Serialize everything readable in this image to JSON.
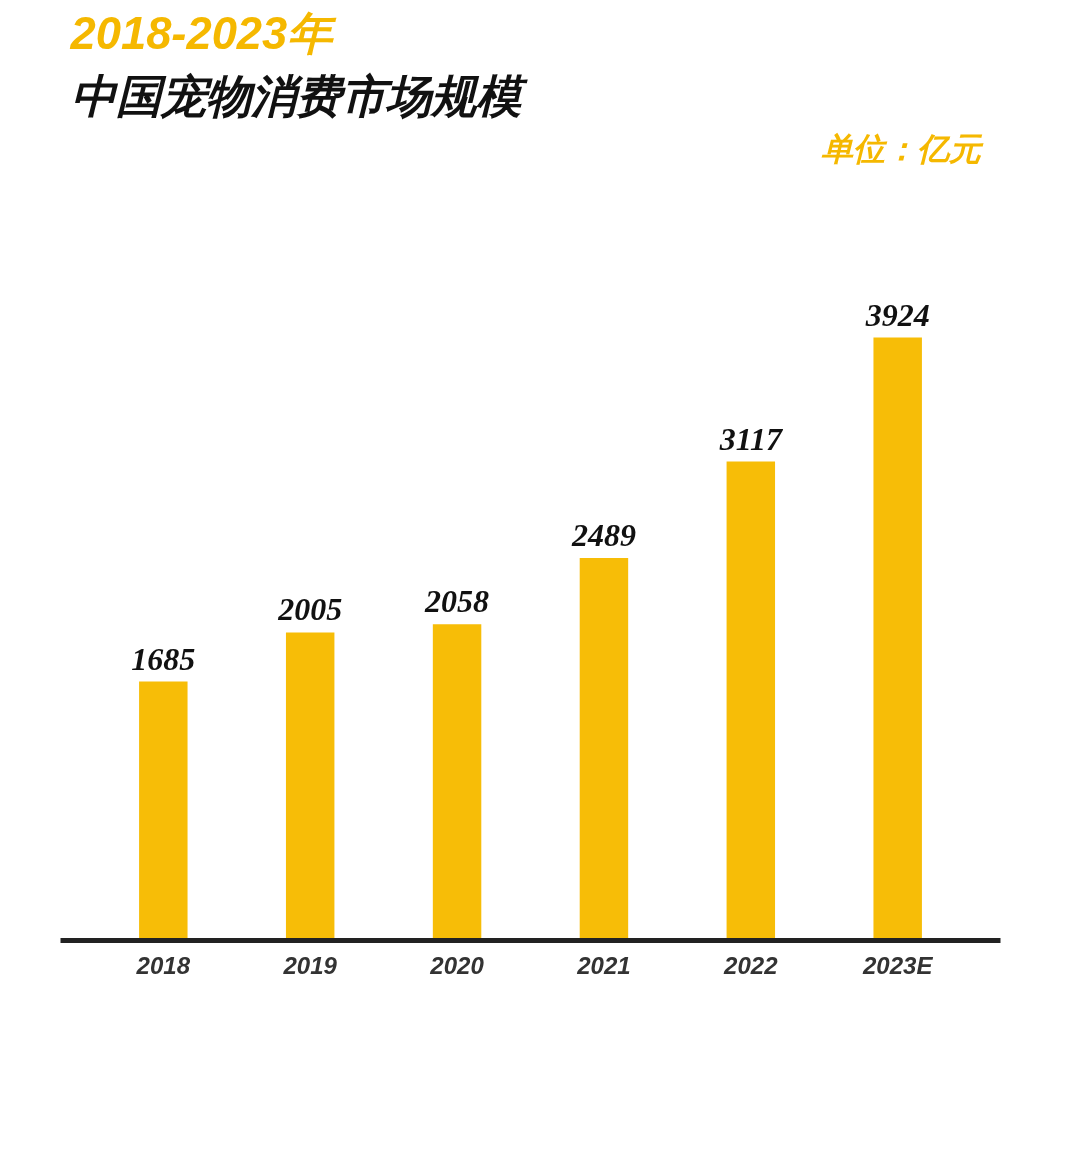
{
  "chart_data": {
    "type": "bar",
    "title": "2018-2023年",
    "subtitle": "中国宠物消费市场规模",
    "categories": [
      "2018",
      "2019",
      "2020",
      "2021",
      "2022",
      "2023E"
    ],
    "values": [
      1685,
      2005,
      2058,
      2489,
      3117,
      3924
    ],
    "color": "#f7bd07",
    "data_labels": true,
    "grid": false,
    "annotations": [
      "单位：亿元"
    ]
  }
}
